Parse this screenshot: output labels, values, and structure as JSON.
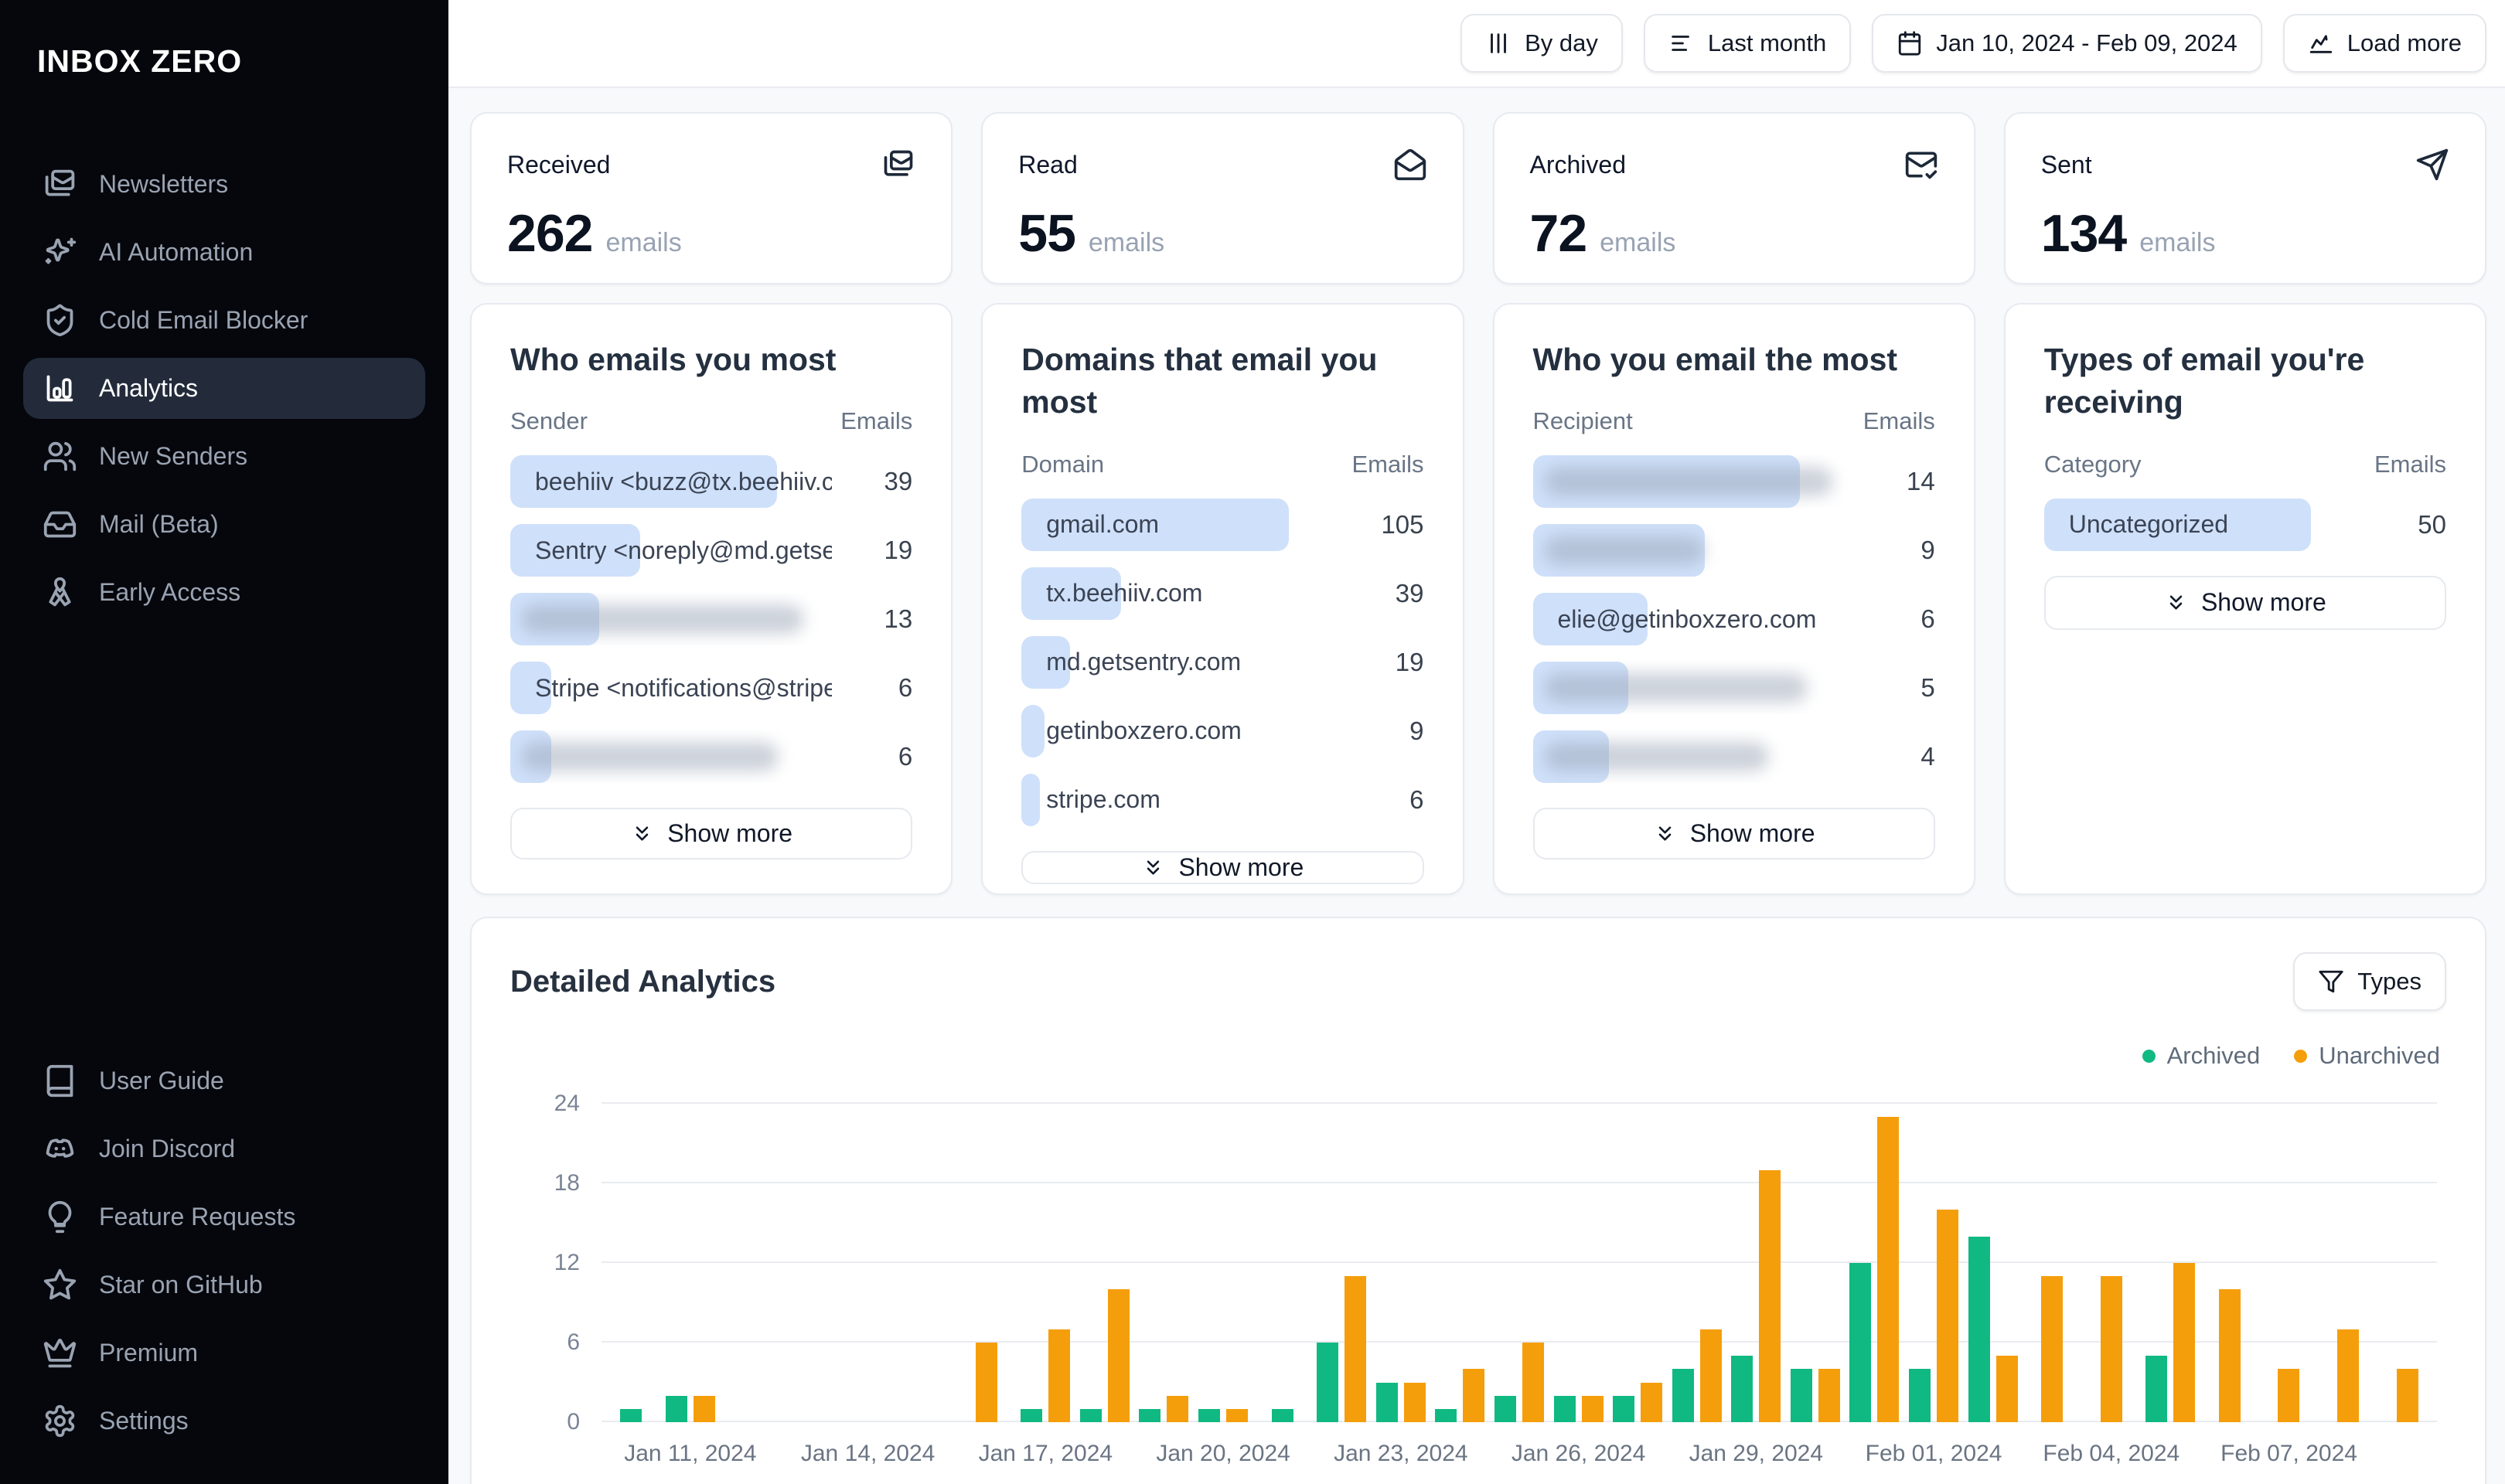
{
  "app": {
    "name": "INBOX ZERO"
  },
  "colors": {
    "sidebar_bg": "#05070c",
    "sidebar_active_bg": "#232b3b",
    "chip_blue": "#cfe0fa",
    "archived_green": "#10b981",
    "unarchived_orange": "#f59e0b",
    "page_bg": "#f8f9fb"
  },
  "sidebar": {
    "items": [
      {
        "id": "newsletters",
        "label": "Newsletters",
        "icon": "mails-icon",
        "active": false
      },
      {
        "id": "ai-automation",
        "label": "AI Automation",
        "icon": "sparkles-icon",
        "active": false
      },
      {
        "id": "cold-email-blocker",
        "label": "Cold Email Blocker",
        "icon": "shield-check-icon",
        "active": false
      },
      {
        "id": "analytics",
        "label": "Analytics",
        "icon": "bar-chart-icon",
        "active": true
      },
      {
        "id": "new-senders",
        "label": "New Senders",
        "icon": "users-icon",
        "active": false
      },
      {
        "id": "mail-beta",
        "label": "Mail (Beta)",
        "icon": "inbox-icon",
        "active": false
      },
      {
        "id": "early-access",
        "label": "Early Access",
        "icon": "ribbon-icon",
        "active": false
      }
    ],
    "footer_items": [
      {
        "id": "user-guide",
        "label": "User Guide",
        "icon": "book-icon"
      },
      {
        "id": "join-discord",
        "label": "Join Discord",
        "icon": "discord-icon"
      },
      {
        "id": "feature-requests",
        "label": "Feature Requests",
        "icon": "lightbulb-icon"
      },
      {
        "id": "star-on-github",
        "label": "Star on GitHub",
        "icon": "star-icon"
      },
      {
        "id": "premium",
        "label": "Premium",
        "icon": "crown-icon"
      },
      {
        "id": "settings",
        "label": "Settings",
        "icon": "gear-icon"
      }
    ]
  },
  "toolbar": {
    "by_day": "By day",
    "last_month": "Last month",
    "date_range": "Jan 10, 2024 - Feb 09, 2024",
    "load_more": "Load more"
  },
  "stats": [
    {
      "label": "Received",
      "value": "262",
      "unit": "emails",
      "icon": "mails-icon"
    },
    {
      "label": "Read",
      "value": "55",
      "unit": "emails",
      "icon": "mail-open-icon"
    },
    {
      "label": "Archived",
      "value": "72",
      "unit": "emails",
      "icon": "mail-check-icon"
    },
    {
      "label": "Sent",
      "value": "134",
      "unit": "emails",
      "icon": "send-icon"
    }
  ],
  "lists": [
    {
      "title": "Who emails you most",
      "col1": "Sender",
      "col2": "Emails",
      "show_more": "Show more",
      "max": 39,
      "rows": [
        {
          "label": "beehiiv <buzz@tx.beehiiv.com>",
          "value": 39,
          "redacted": false
        },
        {
          "label": "Sentry <noreply@md.getsentry....",
          "value": 19,
          "redacted": false
        },
        {
          "label": "",
          "value": 13,
          "redacted": true,
          "ghost": 0.88
        },
        {
          "label": "Stripe <notifications@stripe.co...",
          "value": 6,
          "redacted": false
        },
        {
          "label": "",
          "value": 6,
          "redacted": true,
          "ghost": 0.8
        }
      ]
    },
    {
      "title": "Domains that email you most",
      "col1": "Domain",
      "col2": "Emails",
      "show_more": "Show more",
      "max": 105,
      "rows": [
        {
          "label": "gmail.com",
          "value": 105,
          "redacted": false
        },
        {
          "label": "tx.beehiiv.com",
          "value": 39,
          "redacted": false
        },
        {
          "label": "md.getsentry.com",
          "value": 19,
          "redacted": false
        },
        {
          "label": "getinboxzero.com",
          "value": 9,
          "redacted": false
        },
        {
          "label": "stripe.com",
          "value": 6,
          "redacted": false
        }
      ]
    },
    {
      "title": "Who you email the most",
      "col1": "Recipient",
      "col2": "Emails",
      "show_more": "Show more",
      "max": 14,
      "rows": [
        {
          "label": "",
          "value": 14,
          "redacted": true,
          "ghost": 0.9
        },
        {
          "label": "",
          "value": 9,
          "redacted": true,
          "ghost": 0.5
        },
        {
          "label": "elie@getinboxzero.com",
          "value": 6,
          "redacted": false
        },
        {
          "label": "",
          "value": 5,
          "redacted": true,
          "ghost": 0.82
        },
        {
          "label": "",
          "value": 4,
          "redacted": true,
          "ghost": 0.7
        }
      ]
    },
    {
      "title": "Types of email you're receiving",
      "col1": "Category",
      "col2": "Emails",
      "show_more": "Show more",
      "max": 50,
      "rows": [
        {
          "label": "Uncategorized",
          "value": 50,
          "redacted": false
        }
      ]
    }
  ],
  "detailed": {
    "title": "Detailed Analytics",
    "types_button": "Types"
  },
  "chart_data": {
    "type": "bar",
    "title": "Detailed Analytics",
    "ylim": [
      0,
      24
    ],
    "yticks": [
      0,
      6,
      12,
      18,
      24
    ],
    "grid": true,
    "legend_position": "top-right",
    "categories": [
      "Jan 10, 2024",
      "Jan 11, 2024",
      "Jan 12, 2024",
      "Jan 13, 2024",
      "Jan 14, 2024",
      "Jan 15, 2024",
      "Jan 16, 2024",
      "Jan 17, 2024",
      "Jan 18, 2024",
      "Jan 19, 2024",
      "Jan 20, 2024",
      "Jan 21, 2024",
      "Jan 22, 2024",
      "Jan 23, 2024",
      "Jan 24, 2024",
      "Jan 25, 2024",
      "Jan 26, 2024",
      "Jan 27, 2024",
      "Jan 28, 2024",
      "Jan 29, 2024",
      "Jan 30, 2024",
      "Jan 31, 2024",
      "Feb 01, 2024",
      "Feb 02, 2024",
      "Feb 03, 2024",
      "Feb 04, 2024",
      "Feb 05, 2024",
      "Feb 06, 2024",
      "Feb 07, 2024",
      "Feb 08, 2024",
      "Feb 09, 2024"
    ],
    "xtick_labels": [
      "Jan 11, 2024",
      "Jan 14, 2024",
      "Jan 17, 2024",
      "Jan 20, 2024",
      "Jan 23, 2024",
      "Jan 26, 2024",
      "Jan 29, 2024",
      "Feb 01, 2024",
      "Feb 04, 2024",
      "Feb 07, 2024"
    ],
    "series": [
      {
        "name": "Archived",
        "color": "#10b981",
        "values": [
          1,
          2,
          0,
          0,
          0,
          0,
          0,
          1,
          1,
          1,
          1,
          1,
          6,
          3,
          1,
          2,
          2,
          2,
          4,
          5,
          4,
          12,
          4,
          14,
          0,
          0,
          5,
          0,
          0,
          0,
          0
        ]
      },
      {
        "name": "Unarchived",
        "color": "#f59e0b",
        "values": [
          0,
          2,
          0,
          0,
          0,
          0,
          6,
          7,
          10,
          2,
          1,
          0,
          11,
          3,
          4,
          6,
          2,
          3,
          7,
          19,
          4,
          23,
          16,
          5,
          11,
          11,
          12,
          10,
          4,
          7,
          4
        ]
      }
    ]
  }
}
